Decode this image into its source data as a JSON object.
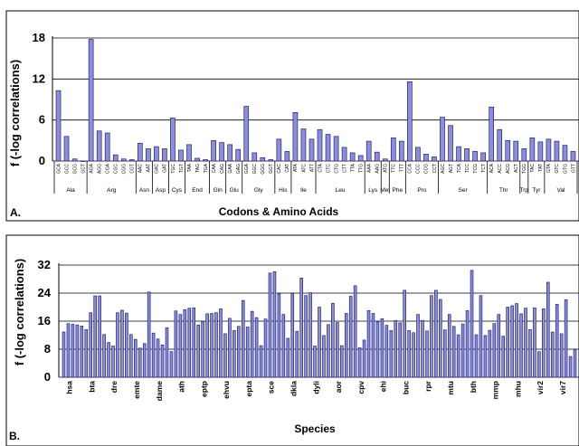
{
  "chart_data": [
    {
      "panel": "A.",
      "type": "bar",
      "ylabel": "f (-log correlations)",
      "xlabel": "Codons & Amino Acids",
      "ylim": [
        0,
        18
      ],
      "yticks": [
        0,
        6,
        12,
        18
      ],
      "grid": true,
      "groups": [
        {
          "name": "Ala",
          "codons": [
            "GCA",
            "GCC",
            "GCG",
            "GCT"
          ],
          "values": [
            10.3,
            3.6,
            0.3,
            0
          ]
        },
        {
          "name": "Arg",
          "codons": [
            "AGA",
            "AGG",
            "CGA",
            "CGC",
            "CGG",
            "CGT"
          ],
          "values": [
            17.8,
            4.4,
            4.1,
            0.9,
            0.3,
            0.2
          ]
        },
        {
          "name": "Asn",
          "codons": [
            "AAC",
            "AAT"
          ],
          "values": [
            2.6,
            1.8
          ]
        },
        {
          "name": "Asp",
          "codons": [
            "GAC",
            "GAT"
          ],
          "values": [
            2.1,
            1.8
          ]
        },
        {
          "name": "Cys",
          "codons": [
            "TGC",
            "TGT"
          ],
          "values": [
            6.3,
            1.6
          ]
        },
        {
          "name": "End",
          "codons": [
            "TAA",
            "TAG",
            "TGA"
          ],
          "values": [
            2.4,
            0.4,
            0.2
          ]
        },
        {
          "name": "Gln",
          "codons": [
            "CAA",
            "CAG"
          ],
          "values": [
            3.0,
            2.7
          ]
        },
        {
          "name": "Glu",
          "codons": [
            "GAA",
            "GAG"
          ],
          "values": [
            2.4,
            1.7
          ]
        },
        {
          "name": "Gly",
          "codons": [
            "GGA",
            "GGC",
            "GGG",
            "GGT"
          ],
          "values": [
            8.0,
            1.2,
            0.5,
            0.2
          ]
        },
        {
          "name": "His",
          "codons": [
            "CAC",
            "CAT"
          ],
          "values": [
            3.2,
            1.4
          ]
        },
        {
          "name": "Ile",
          "codons": [
            "ATA",
            "ATC",
            "ATT"
          ],
          "values": [
            7.1,
            4.7,
            3.2
          ]
        },
        {
          "name": "Leu",
          "codons": [
            "CTA",
            "CTC",
            "CTG",
            "CTT",
            "TTA",
            "TTG"
          ],
          "values": [
            4.6,
            3.9,
            3.6,
            2.0,
            1.2,
            0.8
          ]
        },
        {
          "name": "Lys",
          "codons": [
            "AAA",
            "AAG"
          ],
          "values": [
            2.9,
            1.3
          ]
        },
        {
          "name": "Met",
          "codons": [
            "ATG"
          ],
          "values": [
            0.3
          ]
        },
        {
          "name": "Phe",
          "codons": [
            "TTC",
            "TTT"
          ],
          "values": [
            3.4,
            2.9
          ]
        },
        {
          "name": "Pro",
          "codons": [
            "CCA",
            "CCC",
            "CCG",
            "CCT"
          ],
          "values": [
            11.6,
            2.0,
            1.0,
            0.6
          ]
        },
        {
          "name": "Ser",
          "codons": [
            "AGC",
            "AGT",
            "TCA",
            "TCC",
            "TCG",
            "TCT"
          ],
          "values": [
            6.4,
            5.2,
            2.1,
            1.8,
            1.4,
            1.2
          ]
        },
        {
          "name": "Thr",
          "codons": [
            "ACA",
            "ACC",
            "ACG",
            "ACT"
          ],
          "values": [
            7.9,
            4.6,
            3.0,
            2.9
          ]
        },
        {
          "name": "Trp",
          "codons": [
            "TGG"
          ],
          "values": [
            1.8
          ]
        },
        {
          "name": "Tyr",
          "codons": [
            "TAC",
            "TAT"
          ],
          "values": [
            3.4,
            2.8
          ]
        },
        {
          "name": "Val",
          "codons": [
            "GTA",
            "GTC",
            "GTG",
            "GTT"
          ],
          "values": [
            3.2,
            2.9,
            2.3,
            1.4
          ]
        }
      ]
    },
    {
      "panel": "B.",
      "type": "bar",
      "ylabel": "f (-log correlations)",
      "xlabel": "Species",
      "ylim": [
        0,
        32
      ],
      "yticks": [
        0,
        8,
        16,
        24,
        32
      ],
      "grid": true,
      "species_labels": [
        "hsa",
        "bta",
        "dre",
        "emte",
        "dame",
        "ath",
        "eptp",
        "ehvu",
        "epta",
        "sce",
        "dkla",
        "dyli",
        "aor",
        "cpv",
        "ehi",
        "buc",
        "rpr",
        "mtu",
        "bth",
        "mmp",
        "mhu",
        "vir2",
        "vir7"
      ],
      "values": [
        12.9,
        15.3,
        15.1,
        14.9,
        14.6,
        13.6,
        18.4,
        23.2,
        23.2,
        12.2,
        9.9,
        8.9,
        18.4,
        19.1,
        18.3,
        12.2,
        10.8,
        8.3,
        9.6,
        24.3,
        12.6,
        10.9,
        9.2,
        14.1,
        7.3,
        18.9,
        17.9,
        19.3,
        19.7,
        19.8,
        14.9,
        15.9,
        18.1,
        18.2,
        18.4,
        19.5,
        12.4,
        16.8,
        13.3,
        14.5,
        21.9,
        14.3,
        18.8,
        17.0,
        9.0,
        16.6,
        29.7,
        30.1,
        23.8,
        17.9,
        11.1,
        23.9,
        13.1,
        28.3,
        23.3,
        24.1,
        8.9,
        20.0,
        11.9,
        15.0,
        21.1,
        15.6,
        9.0,
        18.2,
        23.1,
        26.1,
        8.4,
        10.6,
        19.0,
        18.2,
        15.8,
        16.7,
        14.8,
        13.3,
        16.2,
        15.5,
        24.8,
        13.3,
        12.7,
        17.9,
        16.2,
        13.2,
        23.3,
        24.8,
        22.2,
        13.5,
        17.9,
        14.5,
        12.1,
        15.2,
        19.0,
        30.5,
        12.1,
        23.3,
        11.9,
        13.4,
        15.3,
        17.9,
        11.7,
        20.0,
        20.4,
        21.0,
        18.1,
        19.7,
        13.6,
        19.8,
        7.3,
        19.5,
        27.1,
        12.9,
        20.8,
        12.4,
        22.1,
        5.9,
        7.9
      ]
    }
  ]
}
